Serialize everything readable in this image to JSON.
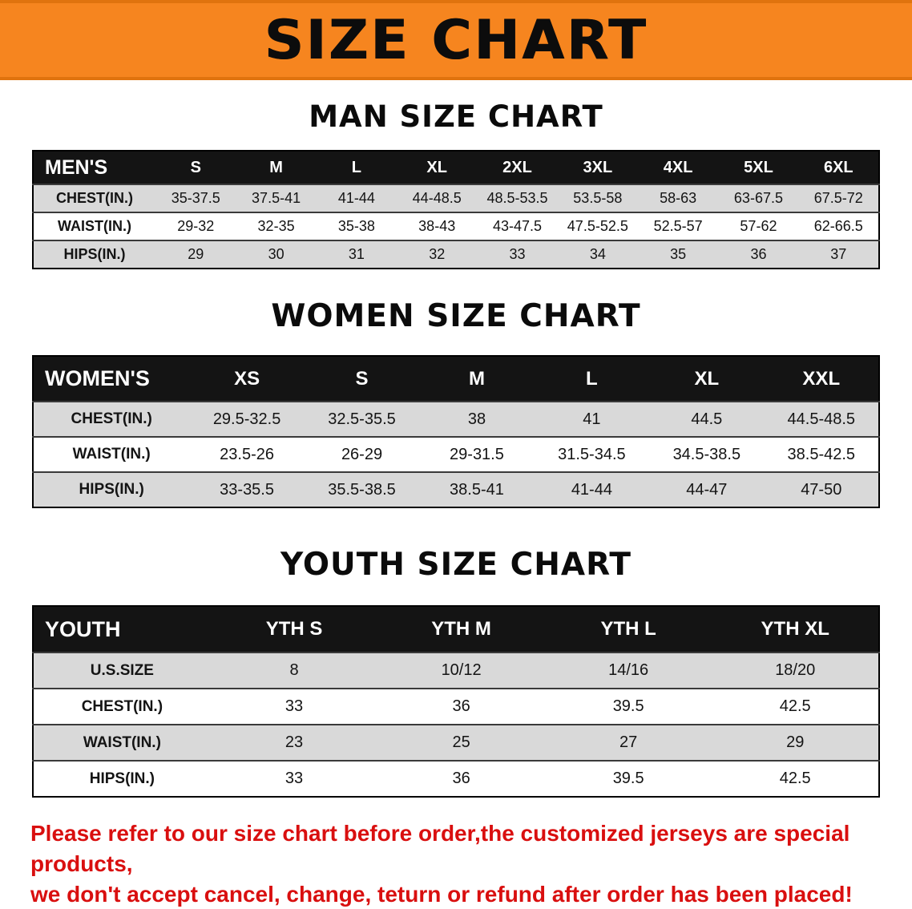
{
  "banner": {
    "title": "SIZE CHART"
  },
  "colors": {
    "banner_orange": "#f6851f",
    "table_header": "#141414",
    "row_shade": "#d9d9d9",
    "note_red": "#d90f0f"
  },
  "sections": [
    {
      "id": "men",
      "heading": "MAN SIZE CHART",
      "table_label": "MEN'S",
      "columns": [
        "S",
        "M",
        "L",
        "XL",
        "2XL",
        "3XL",
        "4XL",
        "5XL",
        "6XL"
      ],
      "rows": [
        {
          "label": "CHEST(IN.)",
          "values": [
            "35-37.5",
            "37.5-41",
            "41-44",
            "44-48.5",
            "48.5-53.5",
            "53.5-58",
            "58-63",
            "63-67.5",
            "67.5-72"
          ]
        },
        {
          "label": "WAIST(IN.)",
          "values": [
            "29-32",
            "32-35",
            "35-38",
            "38-43",
            "43-47.5",
            "47.5-52.5",
            "52.5-57",
            "57-62",
            "62-66.5"
          ]
        },
        {
          "label": "HIPS(IN.)",
          "values": [
            "29",
            "30",
            "31",
            "32",
            "33",
            "34",
            "35",
            "36",
            "37"
          ]
        }
      ]
    },
    {
      "id": "women",
      "heading": "WOMEN SIZE CHART",
      "table_label": "WOMEN'S",
      "columns": [
        "XS",
        "S",
        "M",
        "L",
        "XL",
        "XXL"
      ],
      "rows": [
        {
          "label": "CHEST(IN.)",
          "values": [
            "29.5-32.5",
            "32.5-35.5",
            "38",
            "41",
            "44.5",
            "44.5-48.5"
          ]
        },
        {
          "label": "WAIST(IN.)",
          "values": [
            "23.5-26",
            "26-29",
            "29-31.5",
            "31.5-34.5",
            "34.5-38.5",
            "38.5-42.5"
          ]
        },
        {
          "label": "HIPS(IN.)",
          "values": [
            "33-35.5",
            "35.5-38.5",
            "38.5-41",
            "41-44",
            "44-47",
            "47-50"
          ]
        }
      ]
    },
    {
      "id": "youth",
      "heading": "YOUTH SIZE CHART",
      "table_label": "YOUTH",
      "columns": [
        "YTH S",
        "YTH M",
        "YTH L",
        "YTH XL"
      ],
      "rows": [
        {
          "label": "U.S.SIZE",
          "values": [
            "8",
            "10/12",
            "14/16",
            "18/20"
          ]
        },
        {
          "label": "CHEST(IN.)",
          "values": [
            "33",
            "36",
            "39.5",
            "42.5"
          ]
        },
        {
          "label": "WAIST(IN.)",
          "values": [
            "23",
            "25",
            "27",
            "29"
          ]
        },
        {
          "label": "HIPS(IN.)",
          "values": [
            "33",
            "36",
            "39.5",
            "42.5"
          ]
        }
      ]
    }
  ],
  "note": {
    "lines": [
      "Please refer to our size chart before order,the customized jerseys are special products,",
      "we don't accept cancel, change, teturn or refund after order has been placed!"
    ]
  }
}
